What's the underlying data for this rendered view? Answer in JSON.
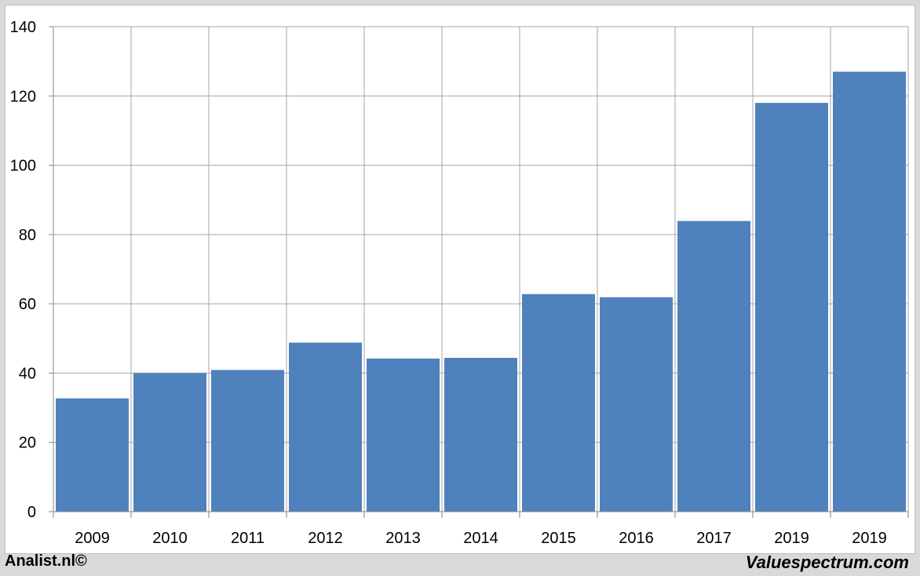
{
  "chart_data": {
    "type": "bar",
    "categories": [
      "2009",
      "2010",
      "2011",
      "2012",
      "2013",
      "2014",
      "2015",
      "2016",
      "2017",
      "2019",
      "2019"
    ],
    "values": [
      32.7,
      40.0,
      40.9,
      48.8,
      44.2,
      44.4,
      62.8,
      61.9,
      83.9,
      118.0,
      127.0
    ],
    "title": "",
    "xlabel": "",
    "ylabel": "",
    "ylim": [
      0,
      140
    ],
    "yticks": [
      0,
      20,
      40,
      60,
      80,
      100,
      120,
      140
    ],
    "grid": true,
    "legend": "none",
    "bar_color": "#4f81bd",
    "grid_color": "#a6a6a6"
  },
  "footer": {
    "left_text": "Analist.nl©",
    "right_text": "Valuespectrum.com"
  }
}
